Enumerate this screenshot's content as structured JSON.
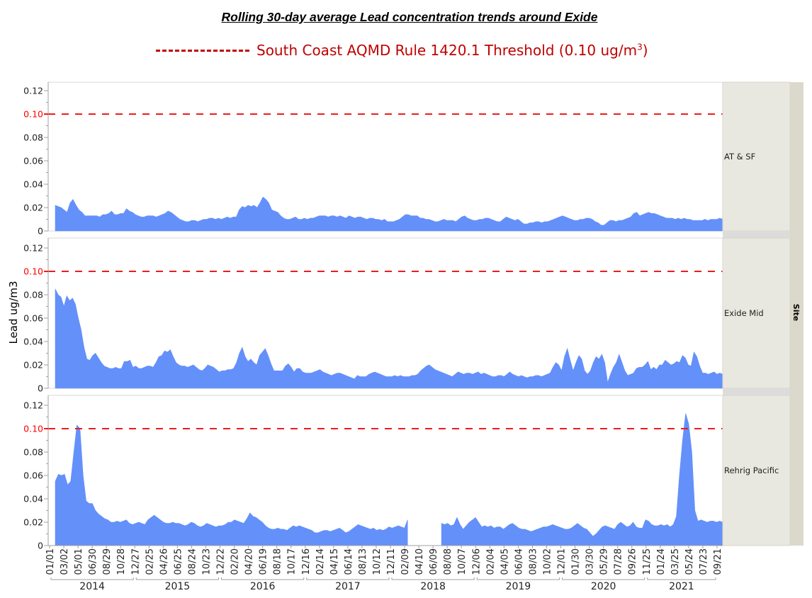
{
  "title": "Rolling 30-day average Lead concentration trends around Exide",
  "legend": {
    "label": "South Coast AQMD Rule 1420.1 Threshold (0.10 ug/m",
    "superscript": "3",
    "suffix": ")",
    "color": "#c00000"
  },
  "colors": {
    "area_fill": "#6490fa",
    "threshold": "#ee1c1c",
    "threshold_tick_label": "#ff0000",
    "strip_bg": "#e9e8e0",
    "outer_strip_bg": "#dbd9cb",
    "panel_gap": "#dcdcdc",
    "axis": "#a0a0a0"
  },
  "chart_data": {
    "type": "area",
    "title": "Rolling 30-day average Lead concentration trends around Exide",
    "ylabel": "Lead ug/m3",
    "xlabel": "",
    "facet_label": "Site",
    "ylim": [
      0,
      0.13
    ],
    "y_ticks": [
      "0",
      "0.02",
      "0.04",
      "0.06",
      "0.08",
      "0.10",
      "0.12"
    ],
    "threshold": 0.1,
    "threshold_label": "0.10",
    "x_tick_labels": [
      "01/01",
      "03/02",
      "05/01",
      "06/30",
      "08/29",
      "10/28",
      "12/27",
      "02/25",
      "04/26",
      "06/25",
      "08/24",
      "10/23",
      "12/22",
      "02/20",
      "04/20",
      "06/19",
      "08/18",
      "10/17",
      "12/16",
      "02/14",
      "04/15",
      "06/14",
      "08/13",
      "10/12",
      "12/11",
      "02/09",
      "04/10",
      "06/09",
      "08/08",
      "10/07",
      "12/06",
      "02/04",
      "04/05",
      "06/04",
      "08/03",
      "10/02",
      "12/01",
      "01/30",
      "03/30",
      "05/29",
      "07/28",
      "09/26",
      "11/25",
      "01/24",
      "03/25",
      "05/24",
      "07/23",
      "09/21"
    ],
    "x_year_groups": [
      {
        "label": "2014",
        "from": 0,
        "to": 6
      },
      {
        "label": "2015",
        "from": 6,
        "to": 12
      },
      {
        "label": "2016",
        "from": 12,
        "to": 18
      },
      {
        "label": "2017",
        "from": 18,
        "to": 24
      },
      {
        "label": "2018",
        "from": 24,
        "to": 30
      },
      {
        "label": "2019",
        "from": 30,
        "to": 36
      },
      {
        "label": "2020",
        "from": 36,
        "to": 42
      },
      {
        "label": "2021",
        "from": 42,
        "to": 47
      }
    ],
    "x_sample_note": "values sampled every 10 days, starting 2014-01-01",
    "series": [
      {
        "name": "AT & SF",
        "values": [
          0.022,
          0.021,
          0.02,
          0.018,
          0.016,
          0.024,
          0.027,
          0.022,
          0.018,
          0.016,
          0.013,
          0.013,
          0.013,
          0.013,
          0.013,
          0.012,
          0.014,
          0.014,
          0.015,
          0.017,
          0.014,
          0.014,
          0.015,
          0.015,
          0.019,
          0.017,
          0.016,
          0.014,
          0.013,
          0.012,
          0.012,
          0.013,
          0.013,
          0.013,
          0.012,
          0.013,
          0.014,
          0.015,
          0.017,
          0.016,
          0.014,
          0.012,
          0.01,
          0.009,
          0.008,
          0.008,
          0.009,
          0.009,
          0.008,
          0.009,
          0.01,
          0.01,
          0.011,
          0.011,
          0.01,
          0.011,
          0.01,
          0.011,
          0.012,
          0.011,
          0.012,
          0.012,
          0.018,
          0.021,
          0.02,
          0.022,
          0.021,
          0.022,
          0.02,
          0.024,
          0.029,
          0.027,
          0.024,
          0.018,
          0.017,
          0.016,
          0.013,
          0.011,
          0.01,
          0.01,
          0.011,
          0.012,
          0.01,
          0.01,
          0.011,
          0.01,
          0.011,
          0.011,
          0.012,
          0.013,
          0.013,
          0.013,
          0.012,
          0.013,
          0.013,
          0.012,
          0.013,
          0.012,
          0.011,
          0.013,
          0.012,
          0.011,
          0.012,
          0.012,
          0.011,
          0.01,
          0.011,
          0.011,
          0.01,
          0.01,
          0.009,
          0.01,
          0.008,
          0.008,
          0.008,
          0.009,
          0.01,
          0.012,
          0.014,
          0.014,
          0.013,
          0.013,
          0.013,
          0.011,
          0.011,
          0.01,
          0.01,
          0.009,
          0.008,
          0.008,
          0.009,
          0.01,
          0.009,
          0.009,
          0.009,
          0.008,
          0.01,
          0.012,
          0.013,
          0.011,
          0.01,
          0.009,
          0.009,
          0.01,
          0.01,
          0.011,
          0.011,
          0.01,
          0.009,
          0.008,
          0.008,
          0.01,
          0.012,
          0.011,
          0.01,
          0.009,
          0.01,
          0.008,
          0.006,
          0.006,
          0.007,
          0.007,
          0.008,
          0.008,
          0.007,
          0.008,
          0.008,
          0.009,
          0.01,
          0.011,
          0.012,
          0.013,
          0.012,
          0.011,
          0.01,
          0.009,
          0.009,
          0.01,
          0.01,
          0.011,
          0.011,
          0.01,
          0.008,
          0.007,
          0.005,
          0.005,
          0.007,
          0.009,
          0.009,
          0.008,
          0.009,
          0.009,
          0.01,
          0.011,
          0.012,
          0.015,
          0.016,
          0.013,
          0.014,
          0.015,
          0.016,
          0.015,
          0.015,
          0.014,
          0.013,
          0.012,
          0.011,
          0.011,
          0.011,
          0.01,
          0.011,
          0.01,
          0.011,
          0.01,
          0.01,
          0.009,
          0.009,
          0.009,
          0.009,
          0.01,
          0.009,
          0.01,
          0.01,
          0.01,
          0.011,
          0.01
        ]
      },
      {
        "name": "Exide Mid",
        "values": [
          0.085,
          0.08,
          0.078,
          0.07,
          0.079,
          0.075,
          0.077,
          0.072,
          0.06,
          0.05,
          0.035,
          0.025,
          0.024,
          0.028,
          0.03,
          0.026,
          0.022,
          0.019,
          0.018,
          0.017,
          0.017,
          0.018,
          0.017,
          0.017,
          0.023,
          0.023,
          0.024,
          0.018,
          0.019,
          0.017,
          0.017,
          0.018,
          0.019,
          0.019,
          0.018,
          0.022,
          0.027,
          0.028,
          0.032,
          0.031,
          0.033,
          0.027,
          0.022,
          0.02,
          0.019,
          0.019,
          0.018,
          0.019,
          0.02,
          0.018,
          0.016,
          0.015,
          0.017,
          0.02,
          0.019,
          0.018,
          0.016,
          0.014,
          0.015,
          0.015,
          0.016,
          0.016,
          0.017,
          0.022,
          0.03,
          0.035,
          0.027,
          0.023,
          0.025,
          0.022,
          0.02,
          0.028,
          0.031,
          0.034,
          0.028,
          0.021,
          0.015,
          0.015,
          0.015,
          0.015,
          0.019,
          0.021,
          0.018,
          0.014,
          0.017,
          0.017,
          0.014,
          0.013,
          0.013,
          0.013,
          0.014,
          0.015,
          0.016,
          0.014,
          0.013,
          0.012,
          0.011,
          0.012,
          0.013,
          0.013,
          0.012,
          0.011,
          0.01,
          0.009,
          0.008,
          0.011,
          0.01,
          0.01,
          0.01,
          0.012,
          0.013,
          0.014,
          0.013,
          0.012,
          0.011,
          0.01,
          0.01,
          0.01,
          0.011,
          0.01,
          0.011,
          0.01,
          0.01,
          0.01,
          0.011,
          0.011,
          0.012,
          0.015,
          0.017,
          0.019,
          0.02,
          0.018,
          0.016,
          0.015,
          0.014,
          0.013,
          0.012,
          0.011,
          0.01,
          0.012,
          0.014,
          0.013,
          0.012,
          0.013,
          0.013,
          0.012,
          0.013,
          0.014,
          0.012,
          0.013,
          0.012,
          0.011,
          0.01,
          0.01,
          0.011,
          0.011,
          0.01,
          0.012,
          0.014,
          0.012,
          0.011,
          0.01,
          0.011,
          0.01,
          0.009,
          0.01,
          0.01,
          0.011,
          0.011,
          0.01,
          0.011,
          0.012,
          0.013,
          0.018,
          0.022,
          0.02,
          0.015,
          0.027,
          0.034,
          0.024,
          0.015,
          0.022,
          0.028,
          0.025,
          0.015,
          0.012,
          0.015,
          0.022,
          0.027,
          0.025,
          0.029,
          0.022,
          0.005,
          0.012,
          0.018,
          0.022,
          0.029,
          0.022,
          0.015,
          0.011,
          0.012,
          0.013,
          0.017,
          0.018,
          0.018,
          0.02,
          0.023,
          0.016,
          0.018,
          0.016,
          0.02,
          0.02,
          0.024,
          0.022,
          0.02,
          0.021,
          0.023,
          0.022,
          0.028,
          0.026,
          0.02,
          0.019,
          0.031,
          0.027,
          0.019,
          0.013,
          0.013,
          0.012,
          0.013,
          0.014,
          0.012,
          0.013,
          0.012
        ]
      },
      {
        "name": "Rehrig Pacific",
        "values": [
          0.055,
          0.061,
          0.06,
          0.061,
          0.052,
          0.055,
          0.08,
          0.103,
          0.1,
          0.06,
          0.038,
          0.036,
          0.036,
          0.03,
          0.027,
          0.025,
          0.023,
          0.022,
          0.02,
          0.02,
          0.021,
          0.02,
          0.021,
          0.022,
          0.019,
          0.018,
          0.019,
          0.02,
          0.019,
          0.018,
          0.022,
          0.024,
          0.026,
          0.024,
          0.022,
          0.02,
          0.019,
          0.019,
          0.02,
          0.019,
          0.019,
          0.018,
          0.017,
          0.018,
          0.02,
          0.019,
          0.017,
          0.016,
          0.017,
          0.019,
          0.018,
          0.017,
          0.016,
          0.017,
          0.017,
          0.018,
          0.02,
          0.02,
          0.022,
          0.021,
          0.02,
          0.019,
          0.023,
          0.028,
          0.025,
          0.024,
          0.022,
          0.02,
          0.017,
          0.015,
          0.014,
          0.014,
          0.015,
          0.014,
          0.014,
          0.013,
          0.015,
          0.017,
          0.016,
          0.017,
          0.016,
          0.015,
          0.014,
          0.013,
          0.011,
          0.011,
          0.012,
          0.013,
          0.013,
          0.012,
          0.013,
          0.014,
          0.015,
          0.013,
          0.011,
          0.012,
          0.014,
          0.016,
          0.018,
          0.017,
          0.016,
          0.015,
          0.014,
          0.015,
          0.013,
          0.014,
          0.013,
          0.014,
          0.016,
          0.015,
          0.016,
          0.017,
          0.016,
          0.015,
          0.022,
          null,
          null,
          null,
          null,
          null,
          null,
          null,
          null,
          null,
          null,
          0.019,
          0.018,
          0.019,
          0.017,
          0.018,
          0.024,
          0.018,
          0.014,
          0.017,
          0.02,
          0.022,
          0.024,
          0.02,
          0.016,
          0.017,
          0.016,
          0.017,
          0.015,
          0.016,
          0.016,
          0.014,
          0.016,
          0.018,
          0.019,
          0.017,
          0.015,
          0.014,
          0.014,
          0.013,
          0.012,
          0.013,
          0.014,
          0.015,
          0.016,
          0.016,
          0.017,
          0.018,
          0.017,
          0.016,
          0.015,
          0.014,
          0.014,
          0.015,
          0.017,
          0.019,
          0.017,
          0.015,
          0.014,
          0.011,
          0.008,
          0.01,
          0.013,
          0.016,
          0.017,
          0.016,
          0.015,
          0.014,
          0.018,
          0.02,
          0.018,
          0.016,
          0.017,
          0.02,
          0.016,
          0.015,
          0.015,
          0.022,
          0.021,
          0.018,
          0.017,
          0.017,
          0.018,
          0.017,
          0.018,
          0.016,
          0.018,
          0.025,
          0.06,
          0.09,
          0.113,
          0.104,
          0.08,
          0.03,
          0.021,
          0.022,
          0.021,
          0.02,
          0.021,
          0.021,
          0.02,
          0.021,
          0.02
        ]
      }
    ]
  }
}
